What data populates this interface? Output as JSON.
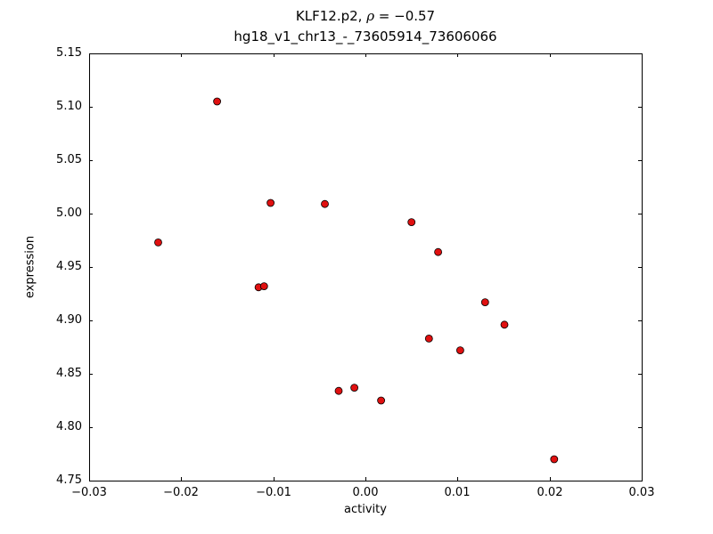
{
  "figure": {
    "title_prefix": "KLF12.p2, ",
    "title_rho": "ρ",
    "title_suffix": " = −0.57",
    "subtitle": "hg18_v1_chr13_-_73605914_73606066",
    "xlabel": "activity",
    "ylabel": "expression"
  },
  "chart_data": {
    "type": "scatter",
    "title": "KLF12.p2, ρ = −0.57",
    "subtitle": "hg18_v1_chr13_-_73605914_73606066",
    "xlabel": "activity",
    "ylabel": "expression",
    "xlim": [
      -0.03,
      0.03
    ],
    "ylim": [
      4.75,
      5.15
    ],
    "grid": false,
    "legend": "none",
    "x_ticks": [
      -0.03,
      -0.02,
      -0.01,
      0.0,
      0.01,
      0.02,
      0.03
    ],
    "x_tick_labels": [
      "−0.03",
      "−0.02",
      "−0.01",
      "0.00",
      "0.01",
      "0.02",
      "0.03"
    ],
    "y_ticks": [
      4.75,
      4.8,
      4.85,
      4.9,
      4.95,
      5.0,
      5.05,
      5.1,
      5.15
    ],
    "y_tick_labels": [
      "4.75",
      "4.80",
      "4.85",
      "4.90",
      "4.95",
      "5.00",
      "5.05",
      "5.10",
      "5.15"
    ],
    "marker": {
      "shape": "circle",
      "fill_color": "#e01010",
      "edge_color": "#000000",
      "radius": 4
    },
    "points": [
      [
        -0.0225,
        4.973
      ],
      [
        -0.0161,
        5.105
      ],
      [
        -0.0116,
        4.931
      ],
      [
        -0.011,
        4.932
      ],
      [
        -0.0103,
        5.01
      ],
      [
        -0.0044,
        5.009
      ],
      [
        -0.0029,
        4.834
      ],
      [
        -0.0012,
        4.837
      ],
      [
        0.0017,
        4.825
      ],
      [
        0.005,
        4.992
      ],
      [
        0.0069,
        4.883
      ],
      [
        0.0079,
        4.964
      ],
      [
        0.0103,
        4.872
      ],
      [
        0.013,
        4.917
      ],
      [
        0.0151,
        4.896
      ],
      [
        0.0205,
        4.77
      ]
    ]
  }
}
